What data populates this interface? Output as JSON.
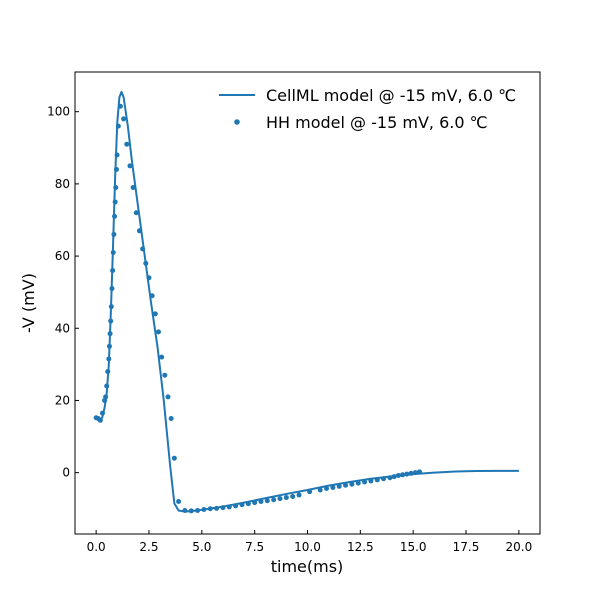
{
  "chart_data": {
    "type": "line",
    "title": "",
    "xlabel": "time(ms)",
    "ylabel": "-V (mV)",
    "xlim": [
      -1.0,
      21.0
    ],
    "ylim": [
      -17.0,
      111.0
    ],
    "xticks": [
      0.0,
      2.5,
      5.0,
      7.5,
      10.0,
      12.5,
      15.0,
      17.5,
      20.0
    ],
    "xtick_labels": [
      "0.0",
      "2.5",
      "5.0",
      "7.5",
      "10.0",
      "12.5",
      "15.0",
      "17.5",
      "20.0"
    ],
    "yticks": [
      0,
      20,
      40,
      60,
      80,
      100
    ],
    "ytick_labels": [
      "0",
      "20",
      "40",
      "60",
      "80",
      "100"
    ],
    "grid": false,
    "legend_position": "top-right",
    "color": "#1f77b4",
    "series": [
      {
        "name": "CellML model @ -15 mV, 6.0 ℃",
        "style": "line",
        "x": [
          0.0,
          0.1,
          0.2,
          0.3,
          0.4,
          0.5,
          0.6,
          0.7,
          0.8,
          0.9,
          1.0,
          1.1,
          1.2,
          1.3,
          1.5,
          1.7,
          2.0,
          2.3,
          2.6,
          2.9,
          3.2,
          3.5,
          3.7,
          3.9,
          4.2,
          4.6,
          5.0,
          6.0,
          7.0,
          8.0,
          9.0,
          10.0,
          11.0,
          12.0,
          13.0,
          14.0,
          15.0,
          16.0,
          17.0,
          18.0,
          19.0,
          20.0
        ],
        "y": [
          15.0,
          14.6,
          14.3,
          15.5,
          18.0,
          22.0,
          30.0,
          45.0,
          63.0,
          82.0,
          97.0,
          104.0,
          105.5,
          104.0,
          96.0,
          86.0,
          73.0,
          60.0,
          47.0,
          35.0,
          20.0,
          2.0,
          -8.5,
          -10.5,
          -10.8,
          -10.6,
          -10.3,
          -9.4,
          -8.3,
          -7.1,
          -5.9,
          -4.8,
          -3.6,
          -2.6,
          -1.7,
          -1.0,
          -0.4,
          0.0,
          0.3,
          0.45,
          0.5,
          0.5
        ]
      },
      {
        "name": "HH model @ -15 mV, 6.0 ℃",
        "style": "dots",
        "x": [
          0.0,
          0.1,
          0.2,
          0.3,
          0.4,
          0.45,
          0.5,
          0.55,
          0.6,
          0.63,
          0.66,
          0.69,
          0.72,
          0.75,
          0.78,
          0.81,
          0.84,
          0.87,
          0.9,
          0.93,
          0.96,
          0.99,
          1.05,
          1.15,
          1.3,
          1.45,
          1.6,
          1.75,
          1.9,
          2.05,
          2.2,
          2.35,
          2.5,
          2.65,
          2.8,
          2.95,
          3.1,
          3.25,
          3.4,
          3.55,
          3.7,
          3.9,
          4.2,
          4.5,
          4.8,
          5.1,
          5.4,
          5.7,
          6.0,
          6.3,
          6.6,
          6.9,
          7.2,
          7.5,
          7.8,
          8.1,
          8.4,
          8.7,
          9.0,
          9.3,
          9.6,
          10.1,
          10.6,
          10.9,
          11.2,
          11.5,
          11.8,
          12.1,
          12.4,
          12.7,
          13.0,
          13.3,
          13.6,
          13.9,
          14.1,
          14.3,
          14.5,
          14.7,
          14.9,
          15.1,
          15.3
        ],
        "y": [
          15.2,
          15.0,
          14.5,
          16.5,
          20.0,
          21.0,
          24.0,
          28.0,
          31.5,
          35.0,
          38.5,
          42.0,
          46.0,
          51.0,
          56.0,
          61.0,
          66.0,
          71.0,
          75.0,
          79.0,
          84.0,
          88.0,
          96.0,
          101.5,
          98.0,
          91.0,
          85.0,
          79.0,
          72.0,
          67.0,
          62.0,
          58.0,
          54.0,
          49.0,
          44.0,
          39.0,
          32.0,
          27.0,
          21.0,
          15.0,
          4.0,
          -8.0,
          -10.5,
          -10.6,
          -10.5,
          -10.2,
          -10.0,
          -9.9,
          -9.7,
          -9.5,
          -9.2,
          -8.9,
          -8.6,
          -8.3,
          -8.0,
          -7.8,
          -7.5,
          -7.2,
          -6.9,
          -6.6,
          -6.2,
          -5.3,
          -4.8,
          -4.4,
          -4.1,
          -3.8,
          -3.5,
          -3.2,
          -2.9,
          -2.6,
          -2.3,
          -2.0,
          -1.7,
          -1.4,
          -1.1,
          -0.8,
          -0.6,
          -0.4,
          -0.2,
          0.0,
          0.2
        ]
      }
    ]
  }
}
